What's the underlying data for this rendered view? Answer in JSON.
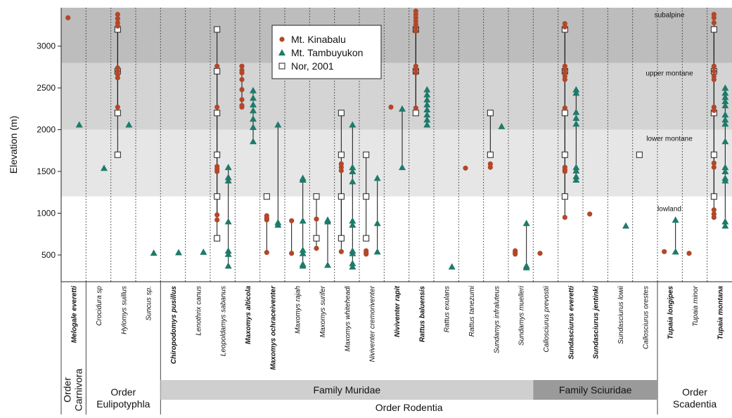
{
  "chart_data": {
    "type": "scatter",
    "ylabel": "Elevation (m)",
    "ylim": [
      180,
      3460
    ],
    "yticks": [
      500,
      1000,
      1500,
      2000,
      2500,
      3000
    ],
    "grid": false,
    "legend_position": "top-center",
    "bands": [
      {
        "label": "subalpine",
        "from": 2800,
        "to": 3460,
        "color": "#bdbdbd"
      },
      {
        "label": "upper montane",
        "from": 2000,
        "to": 2800,
        "color": "#d4d4d4"
      },
      {
        "label": "lower montane",
        "from": 1200,
        "to": 2000,
        "color": "#e6e6e6"
      },
      {
        "label": "lowland",
        "from": 180,
        "to": 1200,
        "color": "#ffffff"
      }
    ],
    "series": [
      {
        "name": "Mt. Kinabalu",
        "marker": "circle",
        "color": "#b2472a"
      },
      {
        "name": "Mt. Tambuyukon",
        "marker": "triangle",
        "color": "#1f7a6a"
      },
      {
        "name": "Nor, 2001",
        "marker": "square",
        "color": "#222222"
      }
    ],
    "species": [
      {
        "name": "Melogale everetti",
        "bold": true,
        "kinabalu": [
          3340
        ],
        "tambuyukon": [
          2060
        ],
        "nor": []
      },
      {
        "name": "Crocidura sp",
        "bold": false,
        "kinabalu": [],
        "tambuyukon": [
          1540
        ],
        "nor": []
      },
      {
        "name": "Hylomys suillus",
        "bold": false,
        "kinabalu": [
          3380,
          3330,
          3280,
          3240,
          2740,
          2700,
          2660,
          2620,
          2270
        ],
        "tambuyukon": [
          2060
        ],
        "nor": [
          3200,
          2700,
          2200,
          1700
        ]
      },
      {
        "name": "Suncus sp.",
        "bold": false,
        "kinabalu": [],
        "tambuyukon": [
          525
        ],
        "nor": []
      },
      {
        "name": "Chiropodomys pusillus",
        "bold": true,
        "kinabalu": [],
        "tambuyukon": [
          530
        ],
        "nor": []
      },
      {
        "name": "Lenothrix canus",
        "bold": false,
        "kinabalu": [],
        "tambuyukon": [
          535
        ],
        "nor": []
      },
      {
        "name": "Leopoldamys sabanus",
        "bold": false,
        "kinabalu": [
          2760,
          2270,
          1560,
          1530,
          1500,
          980,
          920
        ],
        "tambuyukon": [
          1550,
          1430,
          1390,
          900,
          550,
          510,
          370
        ],
        "nor": [
          3200,
          2700,
          2200,
          1700,
          1200,
          700
        ]
      },
      {
        "name": "Maxomys alticola",
        "bold": true,
        "kinabalu": [
          2760,
          2710,
          2680,
          2600,
          2480,
          2360,
          2290,
          2270
        ],
        "tambuyukon": [
          2470,
          2380,
          2300,
          2230,
          2130,
          2030,
          1860
        ],
        "nor": []
      },
      {
        "name": "Maxomys ochraceiventer",
        "bold": true,
        "kinabalu": [
          970,
          940,
          920,
          530
        ],
        "tambuyukon": [
          2060,
          890,
          860
        ],
        "nor": [
          1200
        ]
      },
      {
        "name": "Maxomys rajah",
        "bold": false,
        "kinabalu": [
          910,
          520
        ],
        "tambuyukon": [
          1420,
          1400,
          910,
          560,
          520,
          390,
          370
        ],
        "nor": []
      },
      {
        "name": "Maxomys surifer",
        "bold": false,
        "kinabalu": [
          930,
          580
        ],
        "tambuyukon": [
          920,
          900,
          380
        ],
        "nor": [
          1200,
          700
        ]
      },
      {
        "name": "Maxomys whiteheadi",
        "bold": false,
        "kinabalu": [
          1590,
          1550,
          1510,
          540
        ],
        "tambuyukon": [
          2060,
          1550,
          1500,
          1380,
          910,
          860,
          550,
          520,
          400,
          360
        ],
        "nor": [
          2200,
          1700,
          1200,
          700
        ]
      },
      {
        "name": "Niviventer cremoriventer",
        "bold": false,
        "kinabalu": [
          550,
          530,
          510
        ],
        "tambuyukon": [
          1420,
          880,
          540
        ],
        "nor": [
          1700,
          1200,
          700
        ]
      },
      {
        "name": "Niviventer rapit",
        "bold": true,
        "kinabalu": [
          2270
        ],
        "tambuyukon": [
          2250,
          1550
        ],
        "nor": []
      },
      {
        "name": "Rattus baluensis",
        "bold": true,
        "kinabalu": [
          3420,
          3380,
          3340,
          3300,
          3260,
          3220,
          3180,
          2760,
          2720,
          2680,
          2260
        ],
        "tambuyukon": [
          2480,
          2420,
          2360,
          2300,
          2240,
          2180,
          2120,
          2060
        ],
        "nor": [
          3200,
          2700,
          2200
        ]
      },
      {
        "name": "Rattus exulans",
        "bold": false,
        "kinabalu": [],
        "tambuyukon": [
          360
        ],
        "nor": []
      },
      {
        "name": "Rattus tanezumi",
        "bold": false,
        "kinabalu": [
          1540
        ],
        "tambuyukon": [],
        "nor": []
      },
      {
        "name": "Sundamys infraluteus",
        "bold": false,
        "kinabalu": [
          1590,
          1550
        ],
        "tambuyukon": [
          2040
        ],
        "nor": [
          2200,
          1700
        ]
      },
      {
        "name": "Sundamys muelleri",
        "bold": false,
        "kinabalu": [
          550,
          530,
          510
        ],
        "tambuyukon": [
          880,
          370,
          350
        ],
        "nor": []
      },
      {
        "name": "Callosciurus prevostii",
        "bold": false,
        "kinabalu": [
          520
        ],
        "tambuyukon": [],
        "nor": []
      },
      {
        "name": "Sundasciurus everetti",
        "bold": true,
        "kinabalu": [
          3270,
          3230,
          2760,
          2720,
          2680,
          2640,
          2600,
          2260,
          1550,
          1520,
          1500,
          950
        ],
        "tambuyukon": [
          2480,
          2440,
          2210,
          2140,
          2070,
          1550,
          1510,
          1440,
          1400
        ],
        "nor": [
          3200,
          2700,
          2200,
          1700,
          1200
        ]
      },
      {
        "name": "Sundasciurus jentinki",
        "bold": true,
        "kinabalu": [
          990
        ],
        "tambuyukon": [],
        "nor": []
      },
      {
        "name": "Sundasciurus lowii",
        "bold": false,
        "kinabalu": [],
        "tambuyukon": [
          850
        ],
        "nor": []
      },
      {
        "name": "Callosciurus orestes",
        "bold": false,
        "kinabalu": [],
        "tambuyukon": [],
        "nor": [
          1700
        ]
      },
      {
        "name": "Tupaia longipes",
        "bold": true,
        "kinabalu": [
          540
        ],
        "tambuyukon": [
          920,
          540
        ],
        "nor": []
      },
      {
        "name": "Tupaia minor",
        "bold": false,
        "kinabalu": [
          520
        ],
        "tambuyukon": [],
        "nor": []
      },
      {
        "name": "Tupaia montana",
        "bold": true,
        "kinabalu": [
          3380,
          3340,
          3280,
          2760,
          2700,
          2640,
          2600,
          2270,
          2230,
          1600,
          1550,
          1040,
          990,
          950
        ],
        "tambuyukon": [
          2500,
          2440,
          2390,
          2340,
          2290,
          2180,
          2120,
          2070,
          1860,
          1550,
          1500,
          1420,
          1390,
          900,
          850
        ],
        "nor": [
          3200,
          2700,
          2200,
          1700,
          1200
        ]
      }
    ],
    "families": [
      {
        "label": "Family Muridae",
        "from": 4,
        "to": 18,
        "color": "#cfcfcf"
      },
      {
        "label": "Family Sciuridae",
        "from": 19,
        "to": 23,
        "color": "#9a9a9a"
      }
    ],
    "orders": [
      {
        "label": "Order Carnivora",
        "from": 0,
        "to": 0,
        "vertical": true
      },
      {
        "label": "Order Eulipotyphla",
        "from": 1,
        "to": 3,
        "vertical": false
      },
      {
        "label": "Order Rodentia",
        "from": 4,
        "to": 23,
        "vertical": false
      },
      {
        "label": "Order Scadentia",
        "from": 24,
        "to": 26,
        "vertical": false
      }
    ]
  }
}
